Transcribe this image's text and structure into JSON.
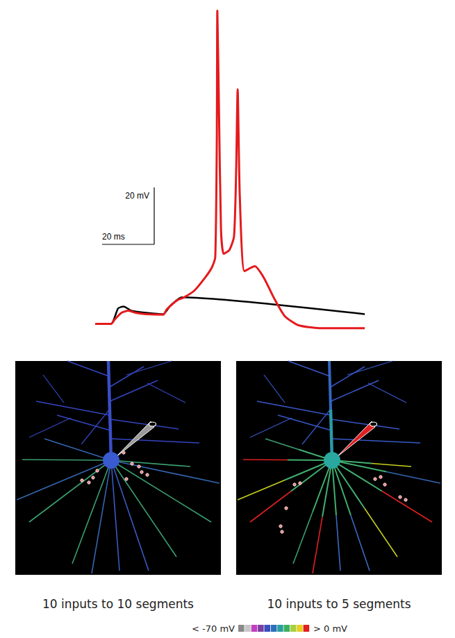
{
  "chart_data": {
    "type": "line",
    "xlim": [
      0,
      104
    ],
    "ylim": [
      -75,
      42
    ],
    "tick_labels": false,
    "grid": false,
    "scale_bars": {
      "x": {
        "value": 20,
        "label": "20 ms"
      },
      "y": {
        "value": 20,
        "label": "20 mV"
      }
    },
    "series": [
      {
        "color": "#e41a1c",
        "x": [
          0,
          6.1,
          7.5,
          10.1,
          12.8,
          15.5,
          19.5,
          26.1,
          27.5,
          31.5,
          34.1,
          38.1,
          42.1,
          44.8,
          46.1,
          46.7,
          46.9,
          47.5,
          48.3,
          49.3,
          51.5,
          53.3,
          54.1,
          54.7,
          55.5,
          57.3,
          61.3,
          64.8,
          68.8,
          72.8,
          78.1,
          86.1,
          103.5
        ],
        "values": [
          -70,
          -70,
          -68.5,
          -66.1,
          -65.4,
          -66.1,
          -66.6,
          -66.8,
          -64.9,
          -61.7,
          -60.7,
          -58.3,
          -53.9,
          -50.2,
          -46.6,
          -5.1,
          40.0,
          7.1,
          -36.8,
          -45.4,
          -44.1,
          -39.3,
          -17.3,
          12.4,
          -24.6,
          -51.5,
          -49.8,
          -53.9,
          -61.2,
          -67.3,
          -70.5,
          -71.5,
          -71.5
        ]
      },
      {
        "color": "#000000",
        "x": [
          0,
          6.1,
          8.8,
          10.9,
          14.1,
          26.1,
          28.8,
          33.3,
          103.5
        ],
        "values": [
          -70,
          -70,
          -64.6,
          -63.9,
          -65.4,
          -66.6,
          -63.7,
          -60.7,
          -66.6
        ]
      }
    ]
  },
  "panels": [
    {
      "caption": "10 inputs to 10 segments"
    },
    {
      "caption": "10 inputs to 5 segments"
    }
  ],
  "colorbar": {
    "min": {
      "value": -70,
      "label": "< -70 mV"
    },
    "max": {
      "value": 0,
      "label": "> 0 mV"
    },
    "colors": [
      "#8a8a8a",
      "#c8c8c8",
      "#c040c0",
      "#7b3fa0",
      "#3a4fc0",
      "#2d6fb8",
      "#2aa0a0",
      "#3db060",
      "#a8d040",
      "#e8d020",
      "#e02020"
    ]
  }
}
